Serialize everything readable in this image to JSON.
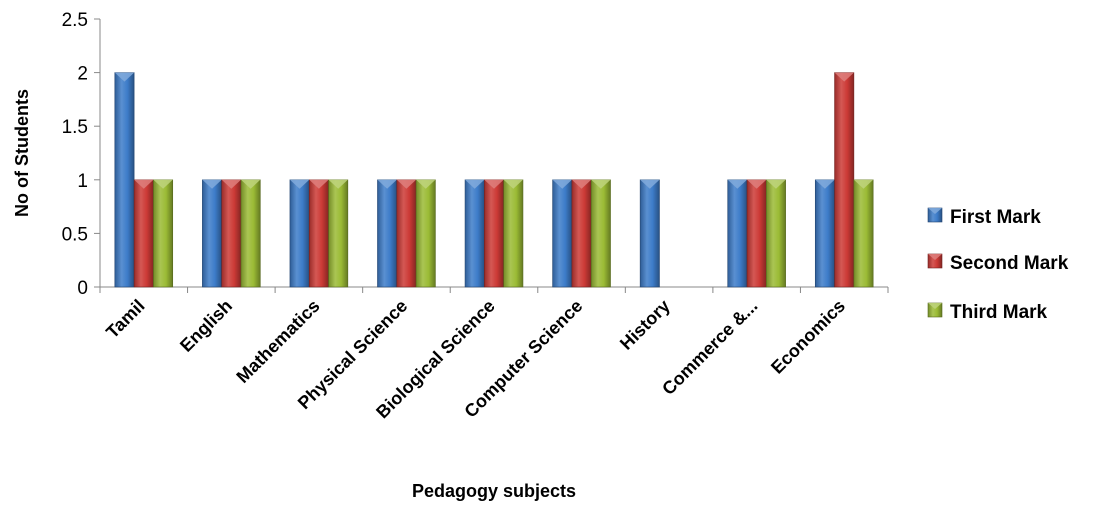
{
  "chart_data": {
    "type": "bar",
    "xlabel": "Pedagogy subjects",
    "ylabel": "No of Students",
    "ylim": [
      0,
      2.5
    ],
    "yticks": [
      "0",
      "0.5",
      "1",
      "1.5",
      "2",
      "2.5"
    ],
    "grid": false,
    "legend_position": "right",
    "categories": [
      "Tamil",
      "English",
      "Mathematics",
      "Physical Science",
      "Biological Science",
      "Computer Science",
      "History",
      "Commerce &...",
      "Economics"
    ],
    "series": [
      {
        "name": "First Mark",
        "color": "#3D7CC9",
        "values": [
          2,
          1,
          1,
          1,
          1,
          1,
          1,
          1,
          1
        ]
      },
      {
        "name": "Second Mark",
        "color": "#CC3A36",
        "values": [
          1,
          1,
          1,
          1,
          1,
          1,
          0,
          1,
          2
        ]
      },
      {
        "name": "Third Mark",
        "color": "#9BBB35",
        "values": [
          1,
          1,
          1,
          1,
          1,
          1,
          0,
          1,
          1
        ]
      }
    ]
  }
}
